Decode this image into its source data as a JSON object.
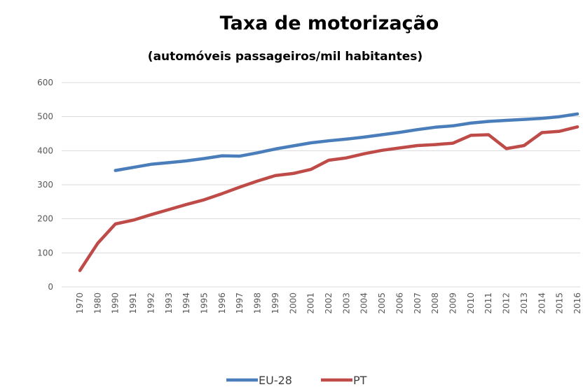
{
  "chart_data": {
    "type": "line",
    "title": "Taxa de motorização",
    "subtitle": "(automóveis passageiros/mil habitantes)",
    "categories": [
      "1970",
      "1980",
      "1990",
      "1991",
      "1992",
      "1993",
      "1994",
      "1995",
      "1996",
      "1997",
      "1998",
      "1999",
      "2000",
      "2001",
      "2002",
      "2003",
      "2004",
      "2005",
      "2006",
      "2007",
      "2008",
      "2009",
      "2010",
      "2011",
      "2012",
      "2013",
      "2014",
      "2015",
      "2016"
    ],
    "series": [
      {
        "name": "EU-28",
        "color": "#4a7ebb",
        "values": [
          null,
          null,
          342,
          351,
          360,
          365,
          370,
          377,
          385,
          384,
          394,
          405,
          414,
          423,
          429,
          434,
          440,
          447,
          454,
          462,
          469,
          473,
          481,
          486,
          489,
          492,
          495,
          500,
          508
        ]
      },
      {
        "name": "PT",
        "color": "#be4b48",
        "values": [
          48,
          128,
          185,
          196,
          212,
          227,
          242,
          256,
          274,
          293,
          311,
          327,
          333,
          345,
          372,
          379,
          391,
          401,
          408,
          415,
          418,
          422,
          445,
          447,
          406,
          415,
          453,
          457,
          470
        ]
      }
    ],
    "ylim": [
      0,
      600
    ],
    "yticks": [
      0,
      100,
      200,
      300,
      400,
      500,
      600
    ],
    "grid": true,
    "legend": "bottom"
  }
}
